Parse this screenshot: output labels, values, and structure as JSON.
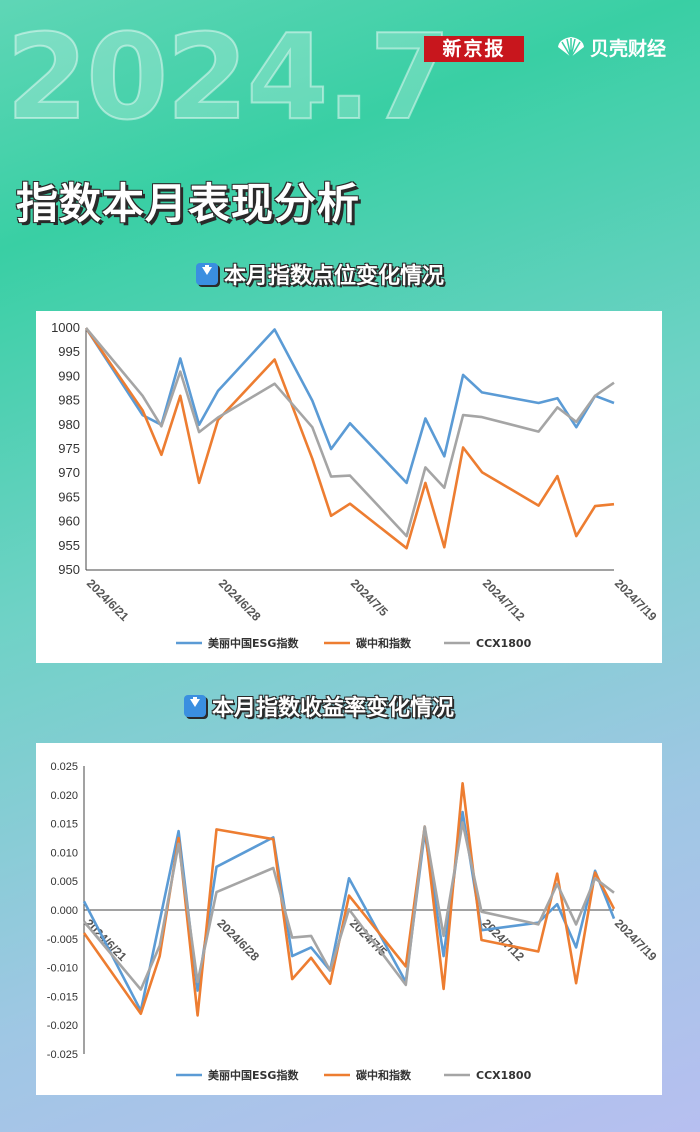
{
  "header": {
    "year_text": "2024.7",
    "logo_xjb": "新京报",
    "logo_bk": "贝壳财经"
  },
  "main_title": "指数本月表现分析",
  "section1_title": "本月指数点位变化情况",
  "section2_title": "本月指数收益率变化情况",
  "colors": {
    "esg": "#5b9bd5",
    "carbon": "#ed7d31",
    "ccx": "#a5a5a5"
  },
  "chart_data": [
    {
      "type": "line",
      "x_ticks": [
        "2024/6/21",
        "2024/6/28",
        "2024/7/5",
        "2024/7/12",
        "2024/7/19"
      ],
      "ylim": [
        950,
        1000
      ],
      "y_ticks": [
        "1000",
        "995",
        "990",
        "985",
        "980",
        "975",
        "970",
        "965",
        "960",
        "955",
        "950"
      ],
      "legend": "bottom",
      "series": [
        {
          "name": "美丽中国ESG指数",
          "values": [
            1000,
            982,
            980,
            993.7,
            980,
            987,
            999.7,
            985,
            975,
            980.3,
            968,
            981.3,
            973.5,
            990.3,
            986.7,
            984.5,
            985.5,
            979.5,
            986,
            984.5
          ],
          "x": [
            0,
            3,
            4,
            5,
            6,
            7,
            10,
            12,
            13,
            14,
            17,
            18,
            19,
            20,
            21,
            24,
            25,
            26,
            27,
            28
          ]
        },
        {
          "name": "碳中和指数",
          "values": [
            1000,
            983,
            973.8,
            986,
            968,
            981,
            993.5,
            973,
            961.2,
            963.7,
            954.5,
            968,
            954.7,
            975.3,
            970.2,
            963.3,
            969.4,
            957,
            963.2,
            963.6
          ],
          "x": [
            0,
            3,
            4,
            5,
            6,
            7,
            10,
            12,
            13,
            14,
            17,
            18,
            19,
            20,
            21,
            24,
            25,
            26,
            27,
            28
          ]
        },
        {
          "name": "CCX1800",
          "values": [
            1000,
            986,
            979.7,
            991,
            978.5,
            981.5,
            988.5,
            979.5,
            969.3,
            969.5,
            957,
            971.2,
            967,
            982,
            981.6,
            978.6,
            983.6,
            980.6,
            986,
            988.7
          ],
          "x": [
            0,
            3,
            4,
            5,
            6,
            7,
            10,
            12,
            13,
            14,
            17,
            18,
            19,
            20,
            21,
            24,
            25,
            26,
            27,
            28
          ]
        }
      ]
    },
    {
      "type": "line",
      "x_ticks": [
        "2024/6/21",
        "2024/6/28",
        "2024/7/5",
        "2024/7/12",
        "2024/7/19"
      ],
      "ylim": [
        -0.025,
        0.025
      ],
      "y_ticks": [
        "0.025",
        "0.020",
        "0.015",
        "0.010",
        "0.005",
        "0.000",
        "-0.005",
        "-0.010",
        "-0.015",
        "-0.020",
        "-0.025"
      ],
      "legend": "bottom",
      "series": [
        {
          "name": "美丽中国ESG指数",
          "values": [
            0.0015,
            -0.0175,
            0.0137,
            -0.014,
            0.0075,
            0.0126,
            -0.008,
            -0.0065,
            -0.0105,
            0.0055,
            -0.0125,
            0.0135,
            -0.008,
            0.017,
            -0.0035,
            -0.0022,
            0.001,
            -0.0065,
            0.0068,
            -0.0015
          ],
          "x": [
            0,
            3,
            5,
            6,
            7,
            10,
            11,
            12,
            13,
            14,
            17,
            18,
            19,
            20,
            21,
            24,
            25,
            26,
            27,
            28
          ]
        },
        {
          "name": "碳中和指数",
          "values": [
            -0.004,
            -0.018,
            -0.008,
            0.0125,
            -0.0183,
            0.014,
            0.0123,
            -0.012,
            -0.0083,
            -0.0128,
            0.0025,
            -0.0098,
            0.0145,
            -0.0137,
            0.022,
            -0.0052,
            -0.0072,
            0.0063,
            -0.0127,
            0.0065,
            0.0002
          ],
          "x": [
            0,
            3,
            4,
            5,
            6,
            7,
            10,
            11,
            12,
            13,
            14,
            17,
            18,
            19,
            20,
            21,
            24,
            25,
            26,
            27,
            28
          ]
        },
        {
          "name": "CCX1800",
          "values": [
            -0.002,
            -0.0138,
            -0.0062,
            0.0115,
            -0.0125,
            0.0031,
            0.0073,
            -0.0048,
            -0.0045,
            -0.0105,
            0.0001,
            -0.013,
            0.0145,
            -0.0045,
            0.0152,
            -0.0003,
            -0.0025,
            0.0045,
            -0.0025,
            0.0055,
            0.003
          ],
          "x": [
            0,
            3,
            4,
            5,
            6,
            7,
            10,
            11,
            12,
            13,
            14,
            17,
            18,
            19,
            20,
            21,
            24,
            25,
            26,
            27,
            28
          ]
        }
      ]
    }
  ]
}
